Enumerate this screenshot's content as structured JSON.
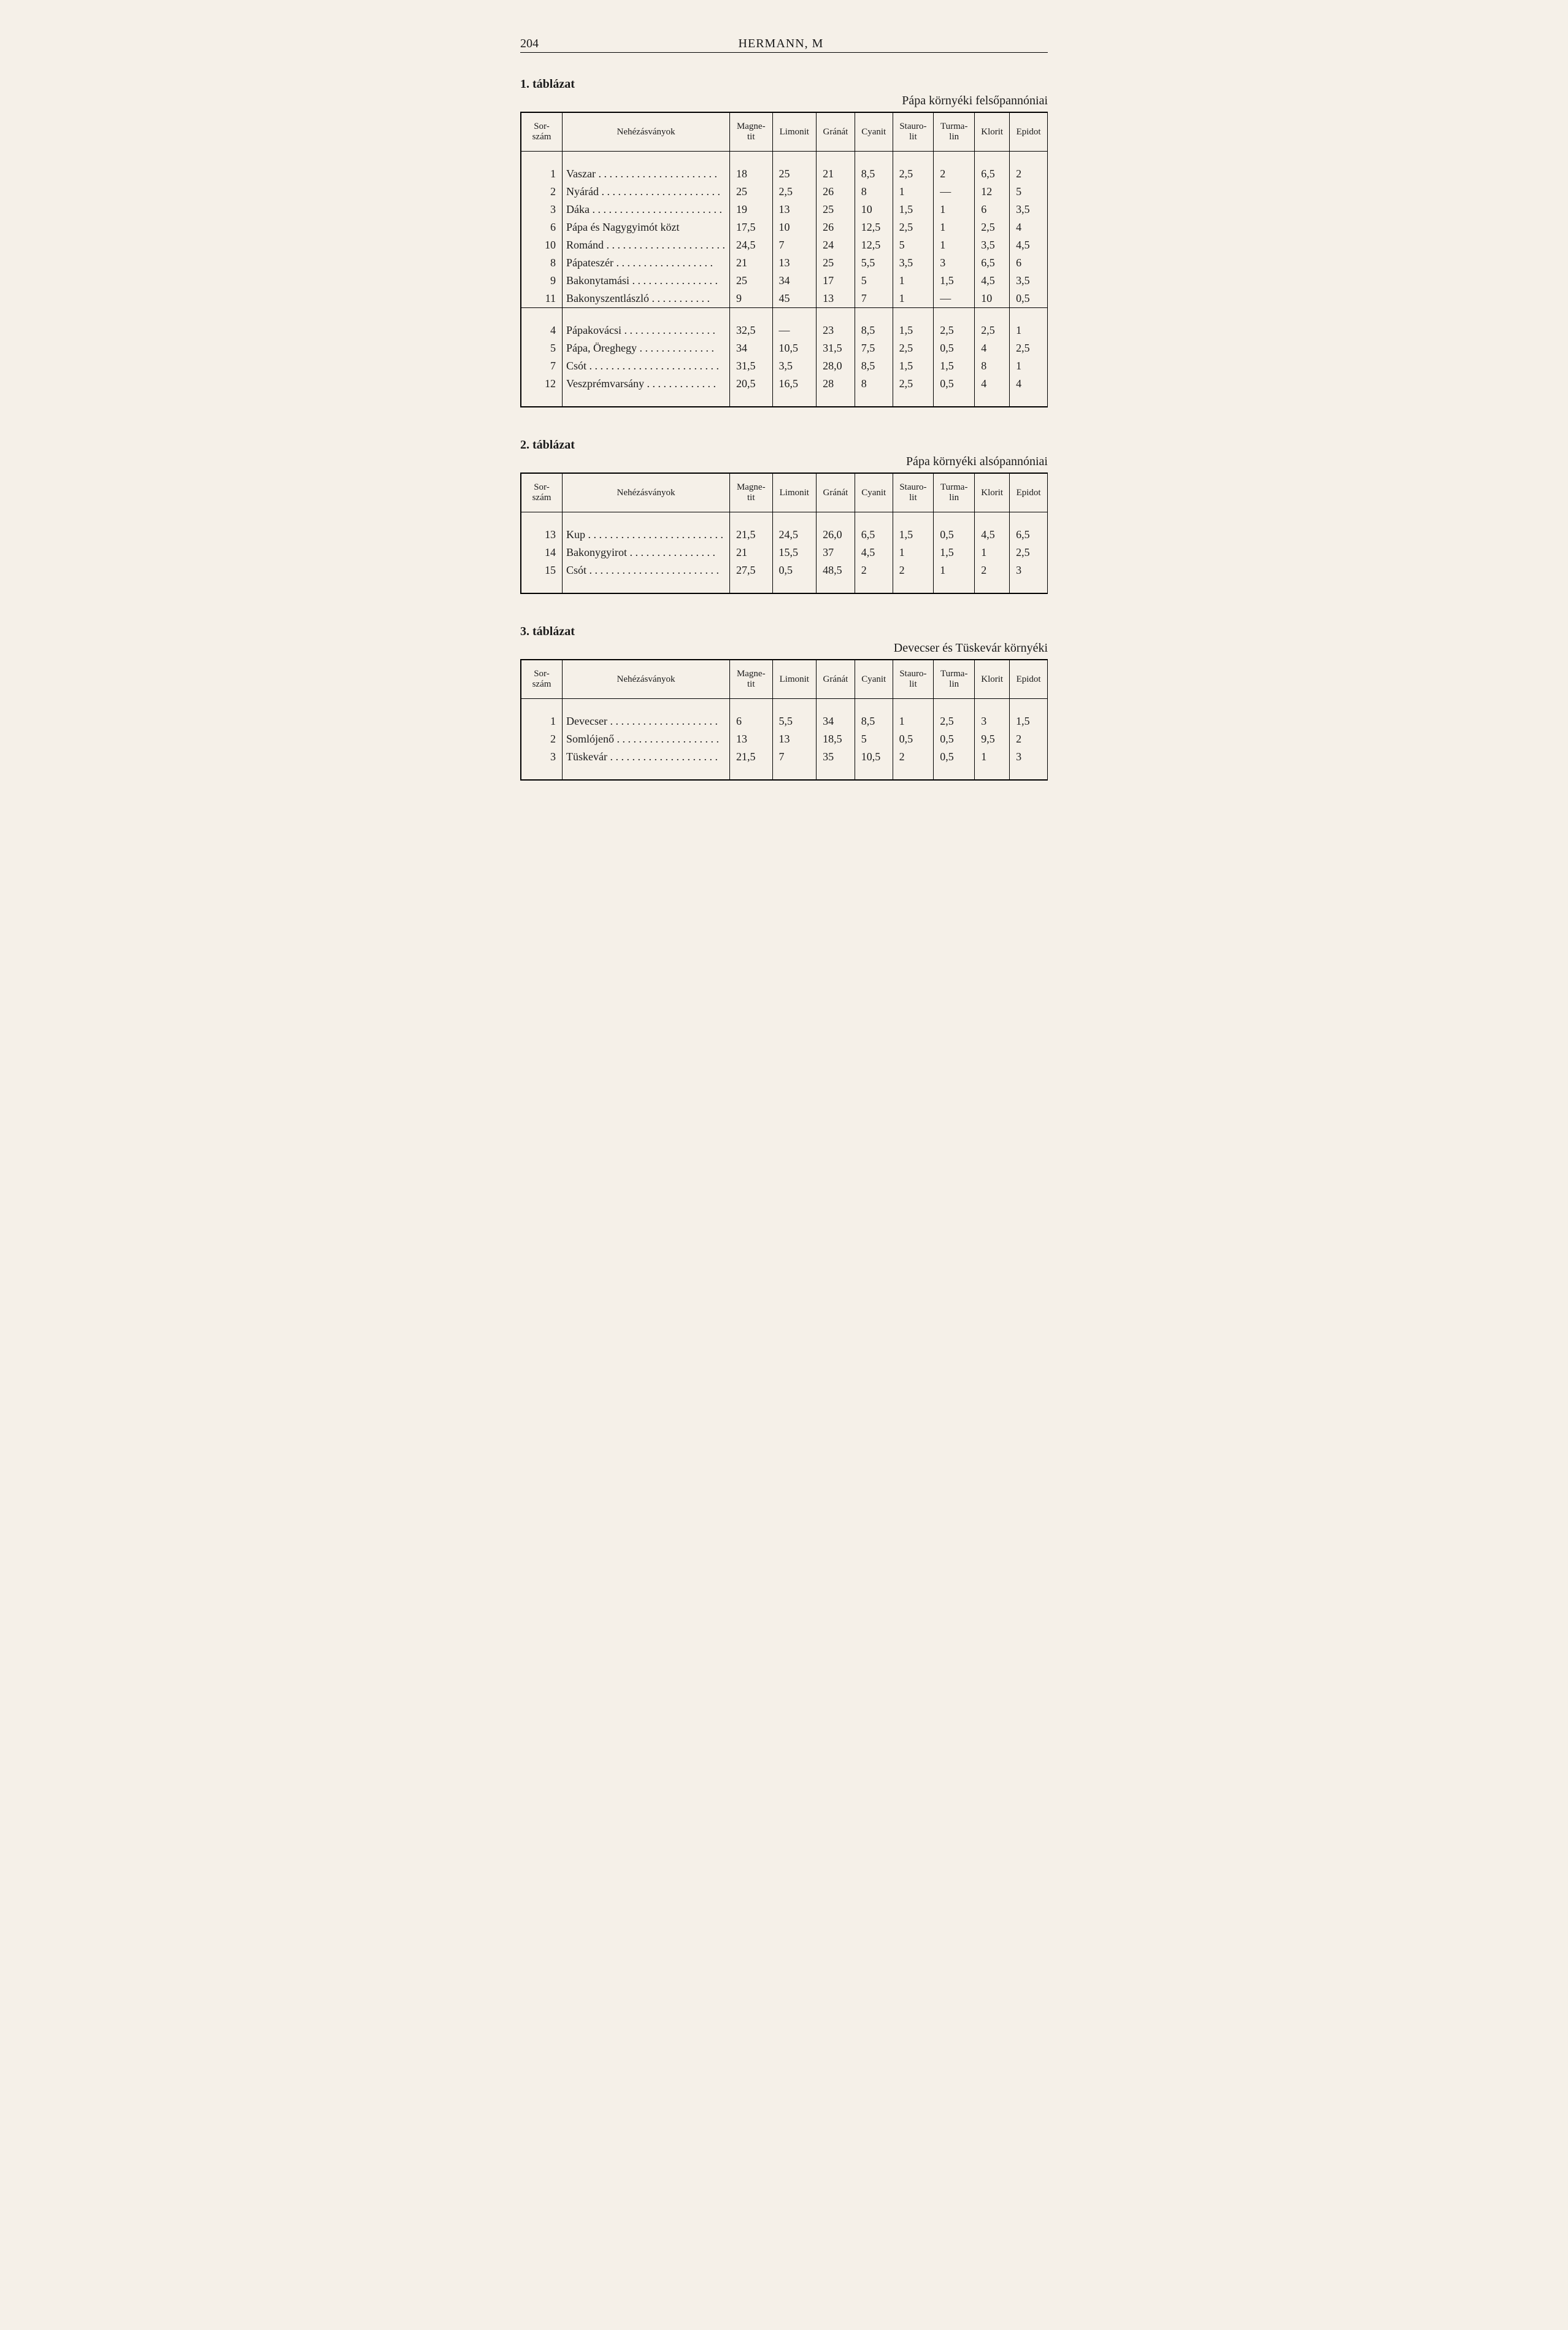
{
  "page_number": "204",
  "author": "HERMANN, M",
  "columns": [
    "Sor-\nszám",
    "Nehézásványok",
    "Magne-\ntit",
    "Limonit",
    "Gránát",
    "Cyanit",
    "Stauro-\nlit",
    "Turma-\nlin",
    "Klorit",
    "Epidot"
  ],
  "tables": [
    {
      "title": "1. táblázat",
      "caption": "Pápa környéki felsőpannóniai",
      "groups": [
        {
          "rows": [
            [
              "1",
              "Vaszar",
              "18",
              "25",
              "21",
              "8,5",
              "2,5",
              "2",
              "6,5",
              "2"
            ],
            [
              "2",
              "Nyárád",
              "25",
              "2,5",
              "26",
              "8",
              "1",
              "—",
              "12",
              "5"
            ],
            [
              "3",
              "Dáka",
              "19",
              "13",
              "25",
              "10",
              "1,5",
              "1",
              "6",
              "3,5"
            ],
            [
              "6",
              "Pápa és Nagygyimót közt",
              "17,5",
              "10",
              "26",
              "12,5",
              "2,5",
              "1",
              "2,5",
              "4"
            ],
            [
              "10",
              "Románd",
              "24,5",
              "7",
              "24",
              "12,5",
              "5",
              "1",
              "3,5",
              "4,5"
            ],
            [
              "8",
              "Pápateszér",
              "21",
              "13",
              "25",
              "5,5",
              "3,5",
              "3",
              "6,5",
              "6"
            ],
            [
              "9",
              "Bakonytamási",
              "25",
              "34",
              "17",
              "5",
              "1",
              "1,5",
              "4,5",
              "3,5"
            ],
            [
              "11",
              "Bakonyszentlászló",
              "9",
              "45",
              "13",
              "7",
              "1",
              "—",
              "10",
              "0,5"
            ]
          ]
        },
        {
          "rows": [
            [
              "4",
              "Pápakovácsi",
              "32,5",
              "—",
              "23",
              "8,5",
              "1,5",
              "2,5",
              "2,5",
              "1"
            ],
            [
              "5",
              "Pápa, Öreghegy",
              "34",
              "10,5",
              "31,5",
              "7,5",
              "2,5",
              "0,5",
              "4",
              "2,5"
            ],
            [
              "7",
              "Csót",
              "31,5",
              "3,5",
              "28,0",
              "8,5",
              "1,5",
              "1,5",
              "8",
              "1"
            ],
            [
              "12",
              "Veszprémvarsány",
              "20,5",
              "16,5",
              "28",
              "8",
              "2,5",
              "0,5",
              "4",
              "4"
            ]
          ]
        }
      ]
    },
    {
      "title": "2. táblázat",
      "caption": "Pápa környéki alsópannóniai",
      "groups": [
        {
          "rows": [
            [
              "13",
              "Kup",
              "21,5",
              "24,5",
              "26,0",
              "6,5",
              "1,5",
              "0,5",
              "4,5",
              "6,5"
            ],
            [
              "14",
              "Bakonygyirot",
              "21",
              "15,5",
              "37",
              "4,5",
              "1",
              "1,5",
              "1",
              "2,5"
            ],
            [
              "15",
              "Csót",
              "27,5",
              "0,5",
              "48,5",
              "2",
              "2",
              "1",
              "2",
              "3"
            ]
          ]
        }
      ]
    },
    {
      "title": "3. táblázat",
      "caption": "Devecser és Tüskevár környéki",
      "groups": [
        {
          "rows": [
            [
              "1",
              "Devecser",
              "6",
              "5,5",
              "34",
              "8,5",
              "1",
              "2,5",
              "3",
              "1,5"
            ],
            [
              "2",
              "Somlójenő",
              "13",
              "13",
              "18,5",
              "5",
              "0,5",
              "0,5",
              "9,5",
              "2"
            ],
            [
              "3",
              "Tüskevár",
              "21,5",
              "7",
              "35",
              "10,5",
              "2",
              "0,5",
              "1",
              "3"
            ]
          ]
        }
      ]
    }
  ]
}
